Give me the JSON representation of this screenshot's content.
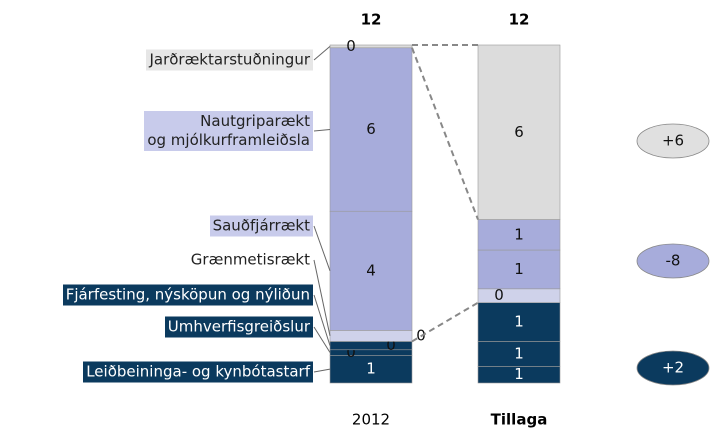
{
  "chart_data": {
    "type": "stacked_bar",
    "categories": [
      "2012",
      "Tillaga"
    ],
    "totals": [
      12,
      12
    ],
    "series": [
      {
        "name": "Leiðbeininga- og kynbótastarf",
        "color": "#0b3a5e",
        "values": [
          1.0,
          0.6
        ],
        "value_labels": [
          "1",
          "1"
        ]
      },
      {
        "name": "Umhverfisgreiðslur",
        "color": "#0b3a5e",
        "values": [
          0.2,
          0.9
        ],
        "value_labels": [
          "0",
          "1"
        ]
      },
      {
        "name": "Fjárfesting, nýsköpun og nýliðun",
        "color": "#0b3a5e",
        "values": [
          0.3,
          1.4
        ],
        "value_labels": [
          "0",
          "1"
        ]
      },
      {
        "name": "Grænmetisrækt",
        "color": "#cfd2ea",
        "values": [
          0.4,
          0.5
        ],
        "value_labels": [
          "0",
          "0"
        ]
      },
      {
        "name": "Sauðfjárrækt",
        "color": "#a7acdb",
        "values": [
          4.3,
          1.4
        ],
        "value_labels": [
          "4",
          "1"
        ]
      },
      {
        "name": "Nautgriparækt\nog mjólkurframleiðsla",
        "color": "#a7acdb",
        "values": [
          5.9,
          1.1
        ],
        "value_labels": [
          "6",
          "1"
        ]
      },
      {
        "name": "Jarðræktarstuðningur",
        "color": "#dcdcdc",
        "values": [
          0.1,
          6.3
        ],
        "value_labels": [
          "0",
          "6"
        ]
      }
    ],
    "changes": [
      {
        "label": "+6",
        "color": "#e0e0e0"
      },
      {
        "label": "-8",
        "color": "#a7acdb"
      },
      {
        "label": "+2",
        "color": "#0b3a5e"
      }
    ]
  }
}
